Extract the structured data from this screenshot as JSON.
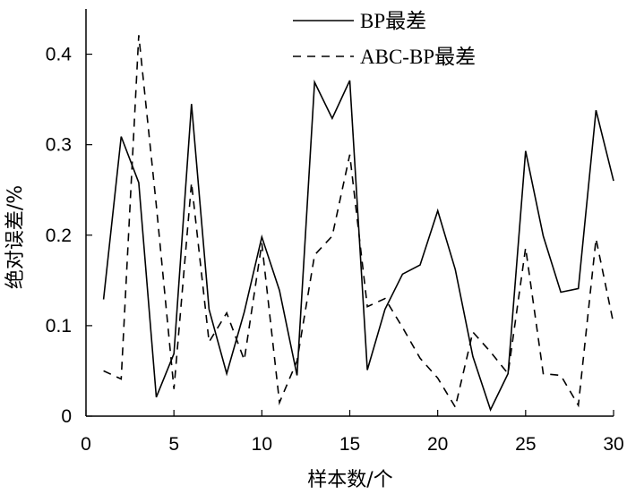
{
  "chart_data": {
    "type": "line",
    "title": "",
    "xlabel": "样本数/个",
    "ylabel": "绝对误差/%",
    "xlim": [
      0,
      30
    ],
    "ylim": [
      0,
      0.45
    ],
    "xticks": [
      0,
      5,
      10,
      15,
      20,
      25,
      30
    ],
    "yticks": [
      0,
      0.1,
      0.2,
      0.3,
      0.4
    ],
    "xtick_labels": [
      "0",
      "5",
      "10",
      "15",
      "20",
      "25",
      "30"
    ],
    "ytick_labels": [
      "0",
      "0.1",
      "0.2",
      "0.3",
      "0.4"
    ],
    "grid": false,
    "legend_position": "top-right",
    "series": [
      {
        "name": "BP最差",
        "style": "solid",
        "color": "#000000",
        "x": [
          1,
          2,
          3,
          4,
          5,
          6,
          7,
          8,
          9,
          10,
          11,
          12,
          13,
          14,
          15,
          16,
          17,
          18,
          19,
          20,
          21,
          22,
          23,
          24,
          25,
          26,
          27,
          28,
          29,
          30
        ],
        "y": [
          0.129,
          0.309,
          0.258,
          0.021,
          0.069,
          0.345,
          0.118,
          0.047,
          0.115,
          0.198,
          0.139,
          0.045,
          0.369,
          0.329,
          0.371,
          0.051,
          0.118,
          0.157,
          0.167,
          0.227,
          0.162,
          0.066,
          0.007,
          0.047,
          0.293,
          0.199,
          0.137,
          0.141,
          0.338,
          0.26
        ]
      },
      {
        "name": "ABC-BP最差",
        "style": "dashed",
        "color": "#000000",
        "x": [
          1,
          2,
          3,
          4,
          5,
          6,
          7,
          8,
          9,
          10,
          11,
          12,
          13,
          14,
          15,
          16,
          17,
          18,
          19,
          20,
          21,
          22,
          23,
          24,
          25,
          26,
          27,
          28,
          29,
          30
        ],
        "y": [
          0.05,
          0.041,
          0.421,
          0.233,
          0.03,
          0.258,
          0.082,
          0.114,
          0.062,
          0.191,
          0.015,
          0.061,
          0.178,
          0.199,
          0.289,
          0.121,
          0.13,
          0.098,
          0.064,
          0.042,
          0.01,
          0.093,
          0.071,
          0.047,
          0.186,
          0.047,
          0.045,
          0.012,
          0.196,
          0.102
        ]
      }
    ]
  }
}
